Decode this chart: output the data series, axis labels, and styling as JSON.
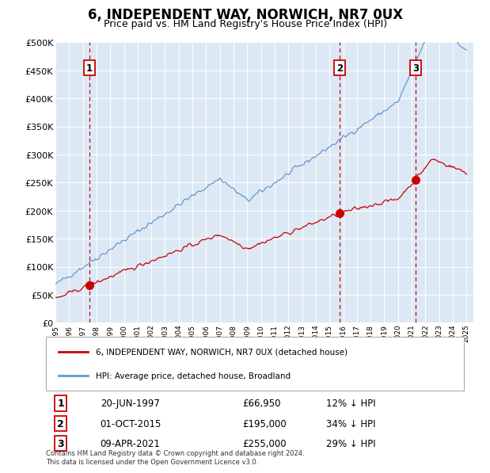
{
  "title": "6, INDEPENDENT WAY, NORWICH, NR7 0UX",
  "subtitle": "Price paid vs. HM Land Registry's House Price Index (HPI)",
  "title_fontsize": 12,
  "subtitle_fontsize": 9,
  "fig_bg_color": "#ffffff",
  "plot_bg_color": "#dce9f5",
  "legend_label_red": "6, INDEPENDENT WAY, NORWICH, NR7 0UX (detached house)",
  "legend_label_blue": "HPI: Average price, detached house, Broadland",
  "sale_annotations": [
    {
      "label": "1",
      "date": "20-JUN-1997",
      "price": "£66,950",
      "pct": "12% ↓ HPI"
    },
    {
      "label": "2",
      "date": "01-OCT-2015",
      "price": "£195,000",
      "pct": "34% ↓ HPI"
    },
    {
      "label": "3",
      "date": "09-APR-2021",
      "price": "£255,000",
      "pct": "29% ↓ HPI"
    }
  ],
  "footer": "Contains HM Land Registry data © Crown copyright and database right 2024.\nThis data is licensed under the Open Government Licence v3.0.",
  "ylim": [
    0,
    500000
  ],
  "yticks": [
    0,
    50000,
    100000,
    150000,
    200000,
    250000,
    300000,
    350000,
    400000,
    450000,
    500000
  ],
  "sale_year_floats": [
    1997.46,
    2015.75,
    2021.27
  ],
  "sale_prices": [
    66950,
    195000,
    255000
  ],
  "red_color": "#cc0000",
  "blue_color": "#6699cc",
  "vline_color": "#cc0000",
  "grid_color": "#ffffff",
  "box_color": "#cc0000",
  "xstart": 1995,
  "xend": 2025
}
